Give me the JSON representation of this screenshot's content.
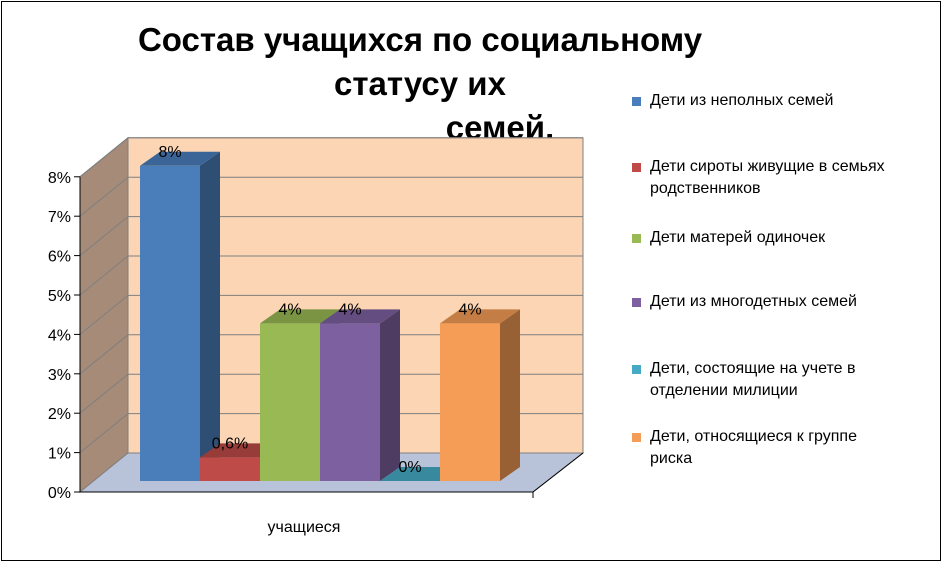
{
  "chart_data": {
    "type": "bar",
    "title": "Состав учащихся по социальному статусу их семей.",
    "title_lines": [
      "Состав учащихся по социальному статусу их",
      "семей."
    ],
    "xlabel": "учащиеся",
    "ylabel": "",
    "categories": [
      "учащиеся"
    ],
    "yticks": [
      "0%",
      "1%",
      "2%",
      "3%",
      "4%",
      "5%",
      "6%",
      "7%",
      "8%"
    ],
    "ylim": [
      0,
      8
    ],
    "grid": true,
    "legend_position": "right",
    "series": [
      {
        "name": "Дети из неполных семей",
        "values": [
          8
        ],
        "data_label": "8%",
        "color": "#4a7ebb"
      },
      {
        "name": "Дети сироты живущие в семьях родственников",
        "values": [
          0.6
        ],
        "data_label": "0,6%",
        "color": "#be4b48"
      },
      {
        "name": "Дети матерей одиночек",
        "values": [
          4
        ],
        "data_label": "4%",
        "color": "#98b954"
      },
      {
        "name": "Дети из многодетных семей",
        "values": [
          4
        ],
        "data_label": "4%",
        "color": "#7d60a0"
      },
      {
        "name": "Дети, состоящие на учете в отделении милиции",
        "values": [
          0
        ],
        "data_label": "0%",
        "color": "#46aac5"
      },
      {
        "name": "Дети, относящиеся к группе риска",
        "values": [
          4
        ],
        "data_label": "4%",
        "color": "#f59d56"
      }
    ]
  },
  "legend": {
    "items": [
      {
        "lines": [
          "Дети из неполных семей"
        ]
      },
      {
        "lines": [
          "Дети сироты живущие в семьях",
          "родственников"
        ]
      },
      {
        "lines": [
          "Дети матерей одиночек"
        ]
      },
      {
        "lines": [
          "Дети из многодетных семей"
        ]
      },
      {
        "lines": [
          "Дети, состоящие на учете в",
          "отделении милиции"
        ]
      },
      {
        "lines": [
          "Дети, относящиеся к группе",
          "риска"
        ]
      }
    ]
  },
  "colors": {
    "wall_back": "#fcd5b4",
    "wall_side": "#a68b78",
    "floor": "#b8c3d9",
    "grid": "#7f7f7f"
  }
}
